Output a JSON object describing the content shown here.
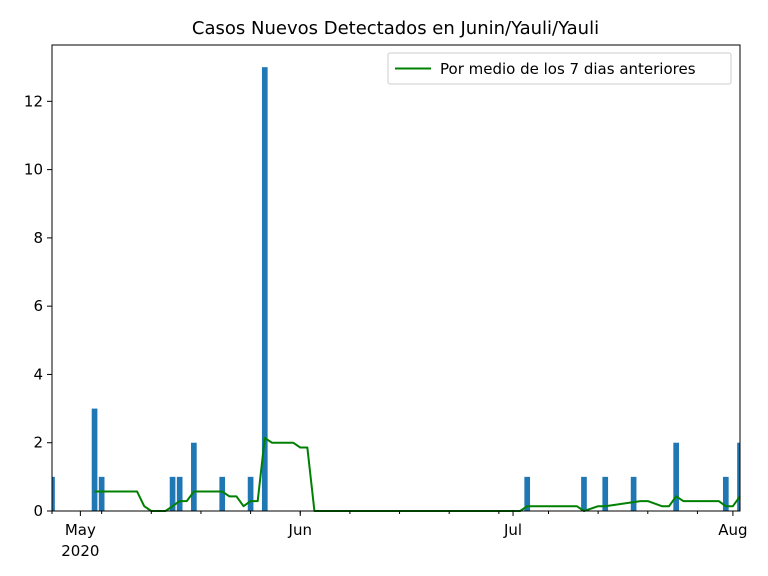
{
  "chart_data": {
    "type": "bar",
    "title": "Casos Nuevos Detectados en Junin/Yauli/Yauli",
    "xlabel": "",
    "ylabel": "",
    "ylim": [
      0,
      13.65
    ],
    "xlim": [
      "2020-04-27",
      "2020-08-02"
    ],
    "y_ticks": [
      0,
      2,
      4,
      6,
      8,
      10,
      12
    ],
    "x_ticks": [
      {
        "date": "2020-05-01",
        "label": "May",
        "sublabel": "2020"
      },
      {
        "date": "2020-06-01",
        "label": "Jun",
        "sublabel": ""
      },
      {
        "date": "2020-07-01",
        "label": "Jul",
        "sublabel": ""
      },
      {
        "date": "2020-08-01",
        "label": "Aug",
        "sublabel": ""
      }
    ],
    "legend": {
      "position": "top-right",
      "entries": [
        "Por medio de los 7 dias anteriores"
      ]
    },
    "colors": {
      "bars": "#1f77b4",
      "line": "#008000"
    },
    "bars": [
      {
        "date": "2020-04-27",
        "value": 1
      },
      {
        "date": "2020-05-03",
        "value": 3
      },
      {
        "date": "2020-05-04",
        "value": 1
      },
      {
        "date": "2020-05-14",
        "value": 1
      },
      {
        "date": "2020-05-15",
        "value": 1
      },
      {
        "date": "2020-05-17",
        "value": 2
      },
      {
        "date": "2020-05-21",
        "value": 1
      },
      {
        "date": "2020-05-25",
        "value": 1
      },
      {
        "date": "2020-05-27",
        "value": 13
      },
      {
        "date": "2020-07-03",
        "value": 1
      },
      {
        "date": "2020-07-11",
        "value": 1
      },
      {
        "date": "2020-07-14",
        "value": 1
      },
      {
        "date": "2020-07-18",
        "value": 1
      },
      {
        "date": "2020-07-24",
        "value": 2
      },
      {
        "date": "2020-07-31",
        "value": 1
      },
      {
        "date": "2020-08-02",
        "value": 2
      }
    ],
    "series": [
      {
        "name": "Por medio de los 7 dias anteriores",
        "x": [
          "2020-05-03",
          "2020-05-09",
          "2020-05-10",
          "2020-05-11",
          "2020-05-12",
          "2020-05-13",
          "2020-05-14",
          "2020-05-15",
          "2020-05-16",
          "2020-05-17",
          "2020-05-21",
          "2020-05-22",
          "2020-05-23",
          "2020-05-24",
          "2020-05-25",
          "2020-05-26",
          "2020-05-27",
          "2020-05-28",
          "2020-05-31",
          "2020-06-01",
          "2020-06-02",
          "2020-06-03",
          "2020-07-02",
          "2020-07-03",
          "2020-07-09",
          "2020-07-10",
          "2020-07-11",
          "2020-07-13",
          "2020-07-14",
          "2020-07-19",
          "2020-07-20",
          "2020-07-22",
          "2020-07-23",
          "2020-07-24",
          "2020-07-25",
          "2020-07-30",
          "2020-07-31",
          "2020-08-01",
          "2020-08-02"
        ],
        "values": [
          0.57,
          0.57,
          0.14,
          0,
          0,
          0,
          0.14,
          0.29,
          0.29,
          0.57,
          0.57,
          0.43,
          0.43,
          0.14,
          0.29,
          0.29,
          2.14,
          2.0,
          2.0,
          1.86,
          1.86,
          0,
          0,
          0.14,
          0.14,
          0.14,
          0,
          0.14,
          0.14,
          0.29,
          0.29,
          0.14,
          0.14,
          0.43,
          0.29,
          0.29,
          0.14,
          0.14,
          0.43
        ]
      }
    ]
  }
}
